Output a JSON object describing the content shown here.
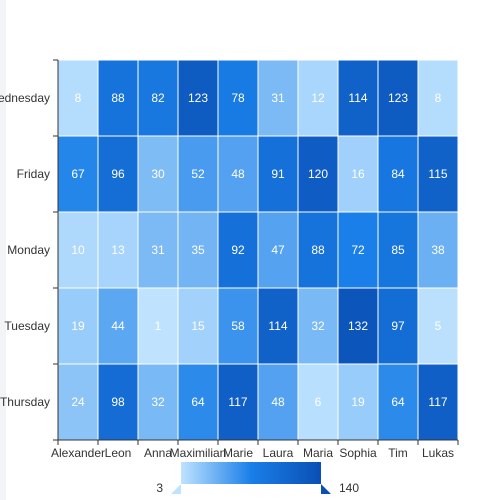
{
  "chart_data": {
    "type": "heatmap",
    "x_categories": [
      "Alexander",
      "Leon",
      "Anna",
      "Maximilian",
      "Marie",
      "Laura",
      "Maria",
      "Sophia",
      "Tim",
      "Lukas"
    ],
    "y_categories": [
      "Wednesday",
      "Friday",
      "Monday",
      "Tuesday",
      "Thursday"
    ],
    "values": [
      [
        8,
        88,
        82,
        123,
        78,
        31,
        12,
        114,
        123,
        8
      ],
      [
        67,
        96,
        30,
        52,
        48,
        91,
        120,
        16,
        84,
        115
      ],
      [
        10,
        13,
        31,
        35,
        92,
        47,
        88,
        72,
        85,
        38
      ],
      [
        19,
        44,
        1,
        15,
        58,
        114,
        32,
        132,
        97,
        5
      ],
      [
        24,
        98,
        32,
        64,
        117,
        48,
        6,
        19,
        64,
        117
      ]
    ],
    "visual_map": {
      "min": 3,
      "max": 140,
      "min_label": "3",
      "max_label": "140",
      "colors": [
        "#bfe3ff",
        "#1a7fe8",
        "#0a4fb5"
      ]
    },
    "title": "",
    "xlabel": "",
    "ylabel": ""
  }
}
